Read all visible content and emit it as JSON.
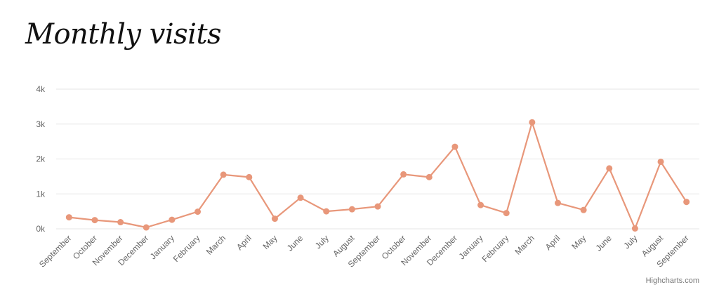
{
  "chart_data": {
    "type": "line",
    "title": "Monthly visits",
    "categories": [
      "September",
      "October",
      "November",
      "December",
      "January",
      "February",
      "March",
      "April",
      "May",
      "June",
      "July",
      "August",
      "September",
      "October",
      "November",
      "December",
      "January",
      "February",
      "March",
      "April",
      "May",
      "June",
      "July",
      "August",
      "September"
    ],
    "series": [
      {
        "values": [
          330,
          250,
          190,
          40,
          260,
          490,
          1550,
          1480,
          290,
          890,
          500,
          560,
          640,
          1560,
          1480,
          2350,
          680,
          450,
          3050,
          740,
          540,
          1730,
          10,
          1920,
          770
        ]
      }
    ],
    "y_ticks": [
      0,
      1000,
      2000,
      3000,
      4000
    ],
    "y_tick_labels": [
      "0k",
      "1k",
      "2k",
      "3k",
      "4k"
    ],
    "ylim": [
      0,
      4000
    ],
    "grid": true,
    "legend": "none",
    "colors": {
      "line": "#e8977a",
      "grid": "#e6e6e6",
      "axis_text": "#666666"
    },
    "credits": "Highcharts.com"
  }
}
